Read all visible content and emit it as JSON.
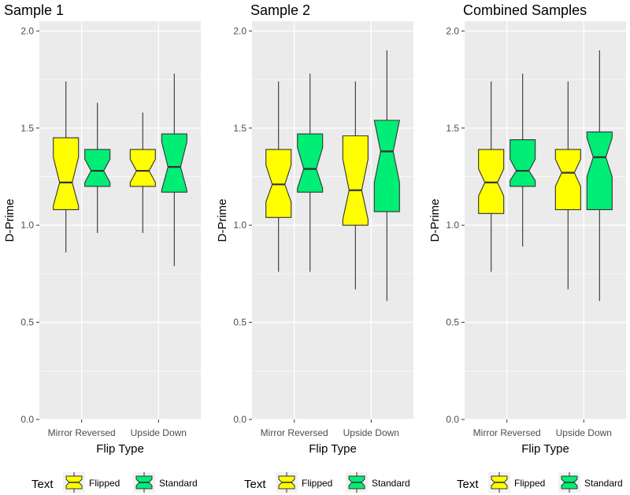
{
  "legend": {
    "title": "Text",
    "items": [
      {
        "label": "Flipped",
        "color": "#FFFF00"
      },
      {
        "label": "Standard",
        "color": "#00EE76"
      }
    ]
  },
  "chart_data": [
    {
      "type": "boxplot",
      "title": "Sample 1",
      "xlabel": "Flip Type",
      "ylabel": "D-Prime",
      "ylim": [
        0,
        2.05
      ],
      "yticks": [
        0.0,
        0.5,
        1.0,
        1.5,
        2.0
      ],
      "ytick_labels": [
        "0.0",
        "0.5",
        "1.0",
        "1.5",
        "2.0"
      ],
      "categories": [
        "Mirror Reversed",
        "Upside Down"
      ],
      "series": [
        {
          "name": "Flipped",
          "color": "#FFFF00",
          "boxes": [
            {
              "min": 0.86,
              "q1": 1.08,
              "median": 1.22,
              "q3": 1.45,
              "max": 1.74,
              "notch_lo": 1.1,
              "notch_hi": 1.35
            },
            {
              "min": 0.96,
              "q1": 1.2,
              "median": 1.28,
              "q3": 1.39,
              "max": 1.58,
              "notch_lo": 1.22,
              "notch_hi": 1.34
            }
          ]
        },
        {
          "name": "Standard",
          "color": "#00EE76",
          "boxes": [
            {
              "min": 0.96,
              "q1": 1.2,
              "median": 1.28,
              "q3": 1.39,
              "max": 1.63,
              "notch_lo": 1.22,
              "notch_hi": 1.34
            },
            {
              "min": 0.79,
              "q1": 1.17,
              "median": 1.3,
              "q3": 1.47,
              "max": 1.78,
              "notch_lo": 1.18,
              "notch_hi": 1.43
            }
          ]
        }
      ]
    },
    {
      "type": "boxplot",
      "title": "Sample 2",
      "xlabel": "Flip Type",
      "ylabel": "D-Prime",
      "ylim": [
        0,
        2.05
      ],
      "yticks": [
        0.0,
        0.5,
        1.0,
        1.5,
        2.0
      ],
      "ytick_labels": [
        "0.0",
        "0.5",
        "1.0",
        "1.5",
        "2.0"
      ],
      "categories": [
        "Mirror Reversed",
        "Upside Down"
      ],
      "series": [
        {
          "name": "Flipped",
          "color": "#FFFF00",
          "boxes": [
            {
              "min": 0.76,
              "q1": 1.04,
              "median": 1.21,
              "q3": 1.39,
              "max": 1.74,
              "notch_lo": 1.12,
              "notch_hi": 1.31
            },
            {
              "min": 0.67,
              "q1": 1.0,
              "median": 1.18,
              "q3": 1.46,
              "max": 1.74,
              "notch_lo": 1.03,
              "notch_hi": 1.34
            }
          ]
        },
        {
          "name": "Standard",
          "color": "#00EE76",
          "boxes": [
            {
              "min": 0.76,
              "q1": 1.17,
              "median": 1.29,
              "q3": 1.47,
              "max": 1.78,
              "notch_lo": 1.19,
              "notch_hi": 1.4
            },
            {
              "min": 0.61,
              "q1": 1.07,
              "median": 1.38,
              "q3": 1.54,
              "max": 1.9,
              "notch_lo": 1.22,
              "notch_hi": 1.54
            }
          ]
        }
      ]
    },
    {
      "type": "boxplot",
      "title": "Combined Samples",
      "xlabel": "Flip Type",
      "ylabel": "D-Prime",
      "ylim": [
        0,
        2.05
      ],
      "yticks": [
        0.0,
        0.5,
        1.0,
        1.5,
        2.0
      ],
      "ytick_labels": [
        "0.0",
        "0.5",
        "1.0",
        "1.5",
        "2.0"
      ],
      "categories": [
        "Mirror Reversed",
        "Upside Down"
      ],
      "series": [
        {
          "name": "Flipped",
          "color": "#FFFF00",
          "boxes": [
            {
              "min": 0.76,
              "q1": 1.06,
              "median": 1.22,
              "q3": 1.39,
              "max": 1.74,
              "notch_lo": 1.15,
              "notch_hi": 1.29
            },
            {
              "min": 0.67,
              "q1": 1.08,
              "median": 1.27,
              "q3": 1.39,
              "max": 1.74,
              "notch_lo": 1.2,
              "notch_hi": 1.34
            }
          ]
        },
        {
          "name": "Standard",
          "color": "#00EE76",
          "boxes": [
            {
              "min": 0.89,
              "q1": 1.2,
              "median": 1.28,
              "q3": 1.44,
              "max": 1.78,
              "notch_lo": 1.23,
              "notch_hi": 1.34
            },
            {
              "min": 0.61,
              "q1": 1.08,
              "median": 1.35,
              "q3": 1.48,
              "max": 1.9,
              "notch_lo": 1.25,
              "notch_hi": 1.45
            }
          ]
        }
      ]
    }
  ]
}
